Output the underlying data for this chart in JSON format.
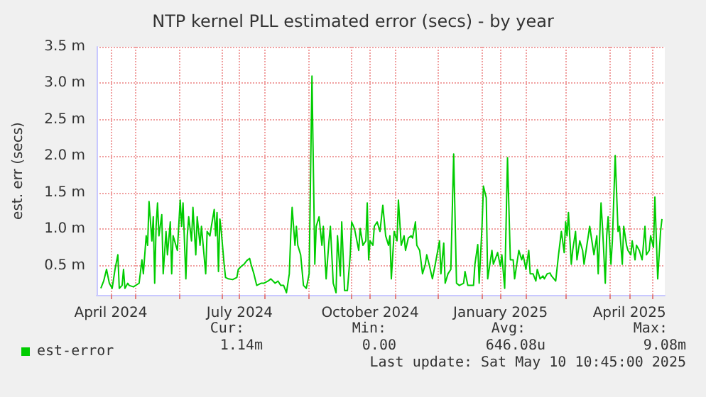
{
  "chart_data": {
    "type": "line",
    "title": "NTP kernel PLL estimated error (secs) - by year",
    "ylabel": "est. err (secs)",
    "xlim": [
      "2024-04-04",
      "2025-05-10"
    ],
    "xticks": [
      {
        "value": "2024-04-14",
        "label": "April 2024"
      },
      {
        "value": "2024-05-01",
        "label": null
      },
      {
        "value": "2024-06-01",
        "label": null
      },
      {
        "value": "2024-07-01",
        "label": null
      },
      {
        "value": "2024-07-14",
        "label": "July 2024"
      },
      {
        "value": "2024-08-01",
        "label": null
      },
      {
        "value": "2024-09-01",
        "label": null
      },
      {
        "value": "2024-10-01",
        "label": null
      },
      {
        "value": "2024-10-14",
        "label": "October 2024"
      },
      {
        "value": "2024-11-01",
        "label": null
      },
      {
        "value": "2024-12-01",
        "label": null
      },
      {
        "value": "2025-01-01",
        "label": null
      },
      {
        "value": "2025-01-14",
        "label": "January 2025"
      },
      {
        "value": "2025-02-01",
        "label": null
      },
      {
        "value": "2025-03-01",
        "label": null
      },
      {
        "value": "2025-04-01",
        "label": null
      },
      {
        "value": "2025-04-15",
        "label": "April 2025"
      },
      {
        "value": "2025-05-01",
        "label": null
      }
    ],
    "ylim": [
      0.1,
      3.5
    ],
    "yticks": [
      {
        "value": 0.5,
        "label": "0.5 m"
      },
      {
        "value": 1.0,
        "label": "1.0 m"
      },
      {
        "value": 1.5,
        "label": "1.5 m"
      },
      {
        "value": 2.0,
        "label": "2.0 m"
      },
      {
        "value": 2.5,
        "label": "2.5 m"
      },
      {
        "value": 3.0,
        "label": "3.0 m"
      },
      {
        "value": 3.5,
        "label": "3.5 m"
      }
    ],
    "grid": true,
    "legend": "bottom left",
    "marker": "none",
    "line_style": "solid",
    "annotations": [
      "Cur:",
      "Min:",
      "Avg:",
      "Max:",
      "1.14m",
      "0.00",
      "646.08u",
      "9.08m",
      "Last update: Sat May 10 10:45:00 2025"
    ],
    "series": [
      {
        "name": "est-error",
        "color": "#00cc00",
        "x": [
          "2024-04-07",
          "2024-04-09",
          "2024-04-11",
          "2024-04-13",
          "2024-04-15",
          "2024-04-17",
          "2024-04-19",
          "2024-04-20",
          "2024-04-22",
          "2024-04-23",
          "2024-04-24",
          "2024-04-26",
          "2024-04-27",
          "2024-04-30",
          "2024-05-04",
          "2024-05-06",
          "2024-05-07",
          "2024-05-09",
          "2024-05-10",
          "2024-05-11",
          "2024-05-13",
          "2024-05-14",
          "2024-05-15",
          "2024-05-16",
          "2024-05-17",
          "2024-05-18",
          "2024-05-20",
          "2024-05-21",
          "2024-05-23",
          "2024-05-24",
          "2024-05-26",
          "2024-05-27",
          "2024-05-28",
          "2024-05-31",
          "2024-06-02",
          "2024-06-03",
          "2024-06-04",
          "2024-06-06",
          "2024-06-07",
          "2024-06-08",
          "2024-06-10",
          "2024-06-11",
          "2024-06-13",
          "2024-06-14",
          "2024-06-16",
          "2024-06-17",
          "2024-06-20",
          "2024-06-21",
          "2024-06-23",
          "2024-06-24",
          "2024-06-26",
          "2024-06-27",
          "2024-06-28",
          "2024-06-29",
          "2024-06-30",
          "2024-07-01",
          "2024-07-03",
          "2024-07-04",
          "2024-07-06",
          "2024-07-09",
          "2024-07-12",
          "2024-07-13",
          "2024-07-15",
          "2024-07-17",
          "2024-07-19",
          "2024-07-21",
          "2024-07-22",
          "2024-07-24",
          "2024-07-26",
          "2024-07-29",
          "2024-07-31",
          "2024-08-03",
          "2024-08-05",
          "2024-08-08",
          "2024-08-10",
          "2024-08-12",
          "2024-08-14",
          "2024-08-16",
          "2024-08-18",
          "2024-08-19",
          "2024-08-20",
          "2024-08-22",
          "2024-08-23",
          "2024-08-24",
          "2024-08-26",
          "2024-08-28",
          "2024-08-30",
          "2024-09-01",
          "2024-09-03",
          "2024-09-05",
          "2024-09-06",
          "2024-09-08",
          "2024-09-10",
          "2024-09-11",
          "2024-09-13",
          "2024-09-15",
          "2024-09-16",
          "2024-09-18",
          "2024-09-20",
          "2024-09-21",
          "2024-09-23",
          "2024-09-24",
          "2024-09-26",
          "2024-09-28",
          "2024-09-30",
          "2024-10-01",
          "2024-10-03",
          "2024-10-06",
          "2024-10-07",
          "2024-10-09",
          "2024-10-11",
          "2024-10-12",
          "2024-10-13",
          "2024-10-14",
          "2024-10-16",
          "2024-10-17",
          "2024-10-19",
          "2024-10-21",
          "2024-10-23",
          "2024-10-25",
          "2024-10-27",
          "2024-10-28",
          "2024-10-29",
          "2024-10-31",
          "2024-11-02",
          "2024-11-03",
          "2024-11-05",
          "2024-11-07",
          "2024-11-08",
          "2024-11-10",
          "2024-11-12",
          "2024-11-13",
          "2024-11-15",
          "2024-11-16",
          "2024-11-18",
          "2024-11-20",
          "2024-11-22",
          "2024-11-23",
          "2024-11-25",
          "2024-11-27",
          "2024-11-29",
          "2024-12-02",
          "2024-12-03",
          "2024-12-05",
          "2024-12-06",
          "2024-12-08",
          "2024-12-10",
          "2024-12-12",
          "2024-12-14",
          "2024-12-16",
          "2024-12-19",
          "2024-12-20",
          "2024-12-22",
          "2024-12-24",
          "2024-12-26",
          "2024-12-27",
          "2024-12-29",
          "2024-12-30",
          "2025-01-01",
          "2025-01-02",
          "2025-01-04",
          "2025-01-05",
          "2025-01-07",
          "2025-01-08",
          "2025-01-09",
          "2025-01-12",
          "2025-01-14",
          "2025-01-15",
          "2025-01-17",
          "2025-01-19",
          "2025-01-21",
          "2025-01-23",
          "2025-01-24",
          "2025-01-25",
          "2025-01-27",
          "2025-01-29",
          "2025-01-30",
          "2025-02-01",
          "2025-02-03",
          "2025-02-04",
          "2025-02-06",
          "2025-02-08",
          "2025-02-09",
          "2025-02-11",
          "2025-02-13",
          "2025-02-14",
          "2025-02-16",
          "2025-02-18",
          "2025-02-19",
          "2025-02-22",
          "2025-02-24",
          "2025-02-26",
          "2025-02-28",
          "2025-03-01",
          "2025-03-02",
          "2025-03-03",
          "2025-03-05",
          "2025-03-06",
          "2025-03-08",
          "2025-03-09",
          "2025-03-11",
          "2025-03-13",
          "2025-03-14",
          "2025-03-16",
          "2025-03-18",
          "2025-03-20",
          "2025-03-21",
          "2025-03-23",
          "2025-03-24",
          "2025-03-26",
          "2025-03-27",
          "2025-03-29",
          "2025-03-30",
          "2025-03-31",
          "2025-04-02",
          "2025-04-03",
          "2025-04-05",
          "2025-04-07",
          "2025-04-08",
          "2025-04-10",
          "2025-04-11",
          "2025-04-13",
          "2025-04-14",
          "2025-04-16",
          "2025-04-17",
          "2025-04-19",
          "2025-04-20",
          "2025-04-22",
          "2025-04-24",
          "2025-04-26",
          "2025-04-27",
          "2025-04-29",
          "2025-04-30",
          "2025-05-02",
          "2025-05-03",
          "2025-05-05",
          "2025-05-07",
          "2025-05-08"
        ],
        "values": [
          0.19,
          0.29,
          0.45,
          0.26,
          0.19,
          0.45,
          0.65,
          0.19,
          0.23,
          0.45,
          0.19,
          0.26,
          0.23,
          0.21,
          0.26,
          0.58,
          0.39,
          0.91,
          0.78,
          1.38,
          0.84,
          1.17,
          0.26,
          1.04,
          1.36,
          0.91,
          1.2,
          0.39,
          0.97,
          0.65,
          1.1,
          0.39,
          0.91,
          0.71,
          1.4,
          1.04,
          1.36,
          0.32,
          0.91,
          1.17,
          0.84,
          1.3,
          0.65,
          1.17,
          0.78,
          1.04,
          0.39,
          0.97,
          0.91,
          1.04,
          1.27,
          0.91,
          1.23,
          0.42,
          1.14,
          0.97,
          0.52,
          0.34,
          0.32,
          0.31,
          0.34,
          0.45,
          0.49,
          0.52,
          0.57,
          0.6,
          0.52,
          0.39,
          0.23,
          0.26,
          0.26,
          0.29,
          0.32,
          0.26,
          0.29,
          0.23,
          0.23,
          0.13,
          0.39,
          0.91,
          1.3,
          0.78,
          1.04,
          0.78,
          0.65,
          0.23,
          0.19,
          0.39,
          3.1,
          0.52,
          1.04,
          1.17,
          0.78,
          1.04,
          0.32,
          0.84,
          1.04,
          0.26,
          0.13,
          0.91,
          0.36,
          1.1,
          0.16,
          0.16,
          0.65,
          1.1,
          1.01,
          0.71,
          1.01,
          0.78,
          0.84,
          1.36,
          0.58,
          0.84,
          0.78,
          1.04,
          1.1,
          0.97,
          1.33,
          0.91,
          0.78,
          0.91,
          0.32,
          0.97,
          0.84,
          1.4,
          0.78,
          0.91,
          0.71,
          0.88,
          0.91,
          0.88,
          1.1,
          0.78,
          0.71,
          0.39,
          0.52,
          0.65,
          0.49,
          0.32,
          0.52,
          0.84,
          0.39,
          0.81,
          0.26,
          0.39,
          0.45,
          2.03,
          0.26,
          0.23,
          0.26,
          0.42,
          0.23,
          0.23,
          0.23,
          0.52,
          0.79,
          0.26,
          1.04,
          1.59,
          1.43,
          0.32,
          0.58,
          0.71,
          0.52,
          0.68,
          0.49,
          0.65,
          0.19,
          1.98,
          0.58,
          0.58,
          0.32,
          0.45,
          0.71,
          0.58,
          0.65,
          0.45,
          0.71,
          0.39,
          0.39,
          0.29,
          0.45,
          0.32,
          0.36,
          0.32,
          0.39,
          0.4,
          0.36,
          0.29,
          0.65,
          0.97,
          0.68,
          1.1,
          0.91,
          1.23,
          0.52,
          0.71,
          0.97,
          0.58,
          0.84,
          0.71,
          0.52,
          0.78,
          1.04,
          0.78,
          0.65,
          0.91,
          0.39,
          1.36,
          1.04,
          0.26,
          0.91,
          1.17,
          0.52,
          0.84,
          2.01,
          0.97,
          1.04,
          0.52,
          1.04,
          0.78,
          0.71,
          0.65,
          0.84,
          0.58,
          0.78,
          0.71,
          0.58,
          1.04,
          0.65,
          0.71,
          0.91,
          0.75,
          1.44,
          0.32,
          0.97,
          1.14
        ]
      }
    ]
  }
}
